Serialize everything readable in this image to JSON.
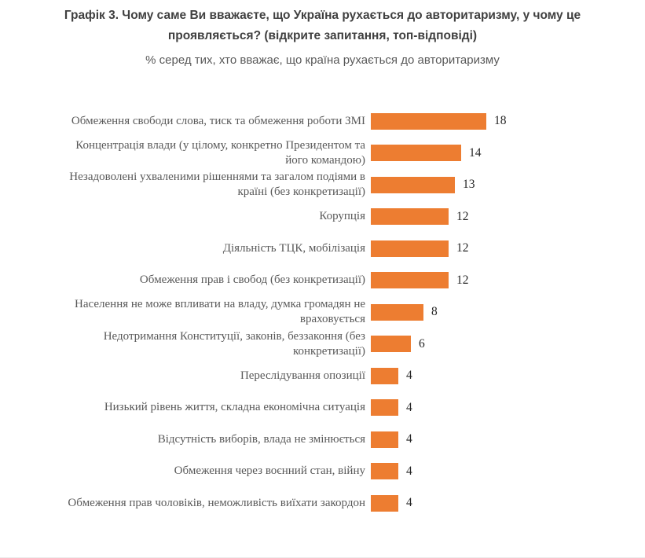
{
  "header": {
    "title": "Графік 3. Чому саме Ви вважаєте, що Україна рухається до авторитаризму, у чому це проявляється? (відкрите запитання, топ-відповіді)",
    "subtitle": "% серед тих, хто вважає, що країна рухається до авторитаризму"
  },
  "chart_data": {
    "type": "bar",
    "orientation": "horizontal",
    "title": "Графік 3. Чому саме Ви вважаєте, що Україна рухається до авторитаризму, у чому це проявляється? (відкрите запитання, топ-відповіді)",
    "subtitle": "% серед тих, хто вважає, що країна рухається до авторитаризму",
    "categories": [
      "Обмеження свободи слова, тиск та обмеження роботи ЗМІ",
      "Концентрація влади (у цілому, конкретно Президентом та його командою)",
      "Незадоволені ухваленими рішеннями та загалом подіями в країні (без конкретизації)",
      "Корупція",
      "Діяльність ТЦК, мобілізація",
      "Обмеження прав і свобод (без конкретизації)",
      "Населення не може впливати на владу, думка громадян не враховується",
      "Недотримання Конституції, законів, беззаконня (без конкретизації)",
      "Переслідування опозиції",
      "Низький рівень життя, складна економічна ситуація",
      "Відсутність виборів, влада не змінюється",
      "Обмеження через воєнний стан, війну",
      "Обмеження прав чоловіків, неможливість виїхати закордон"
    ],
    "values": [
      18,
      14,
      13,
      12,
      12,
      12,
      8,
      6,
      4,
      4,
      4,
      4,
      4
    ],
    "unit": "%",
    "xlim": [
      0,
      20
    ],
    "grid": false,
    "legend": false,
    "value_labels": "outside-end",
    "colors": {
      "bar": "#ED7D31",
      "title_text": "#404040",
      "subtitle_text": "#595959",
      "category_text": "#595959",
      "value_text": "#262626"
    }
  }
}
